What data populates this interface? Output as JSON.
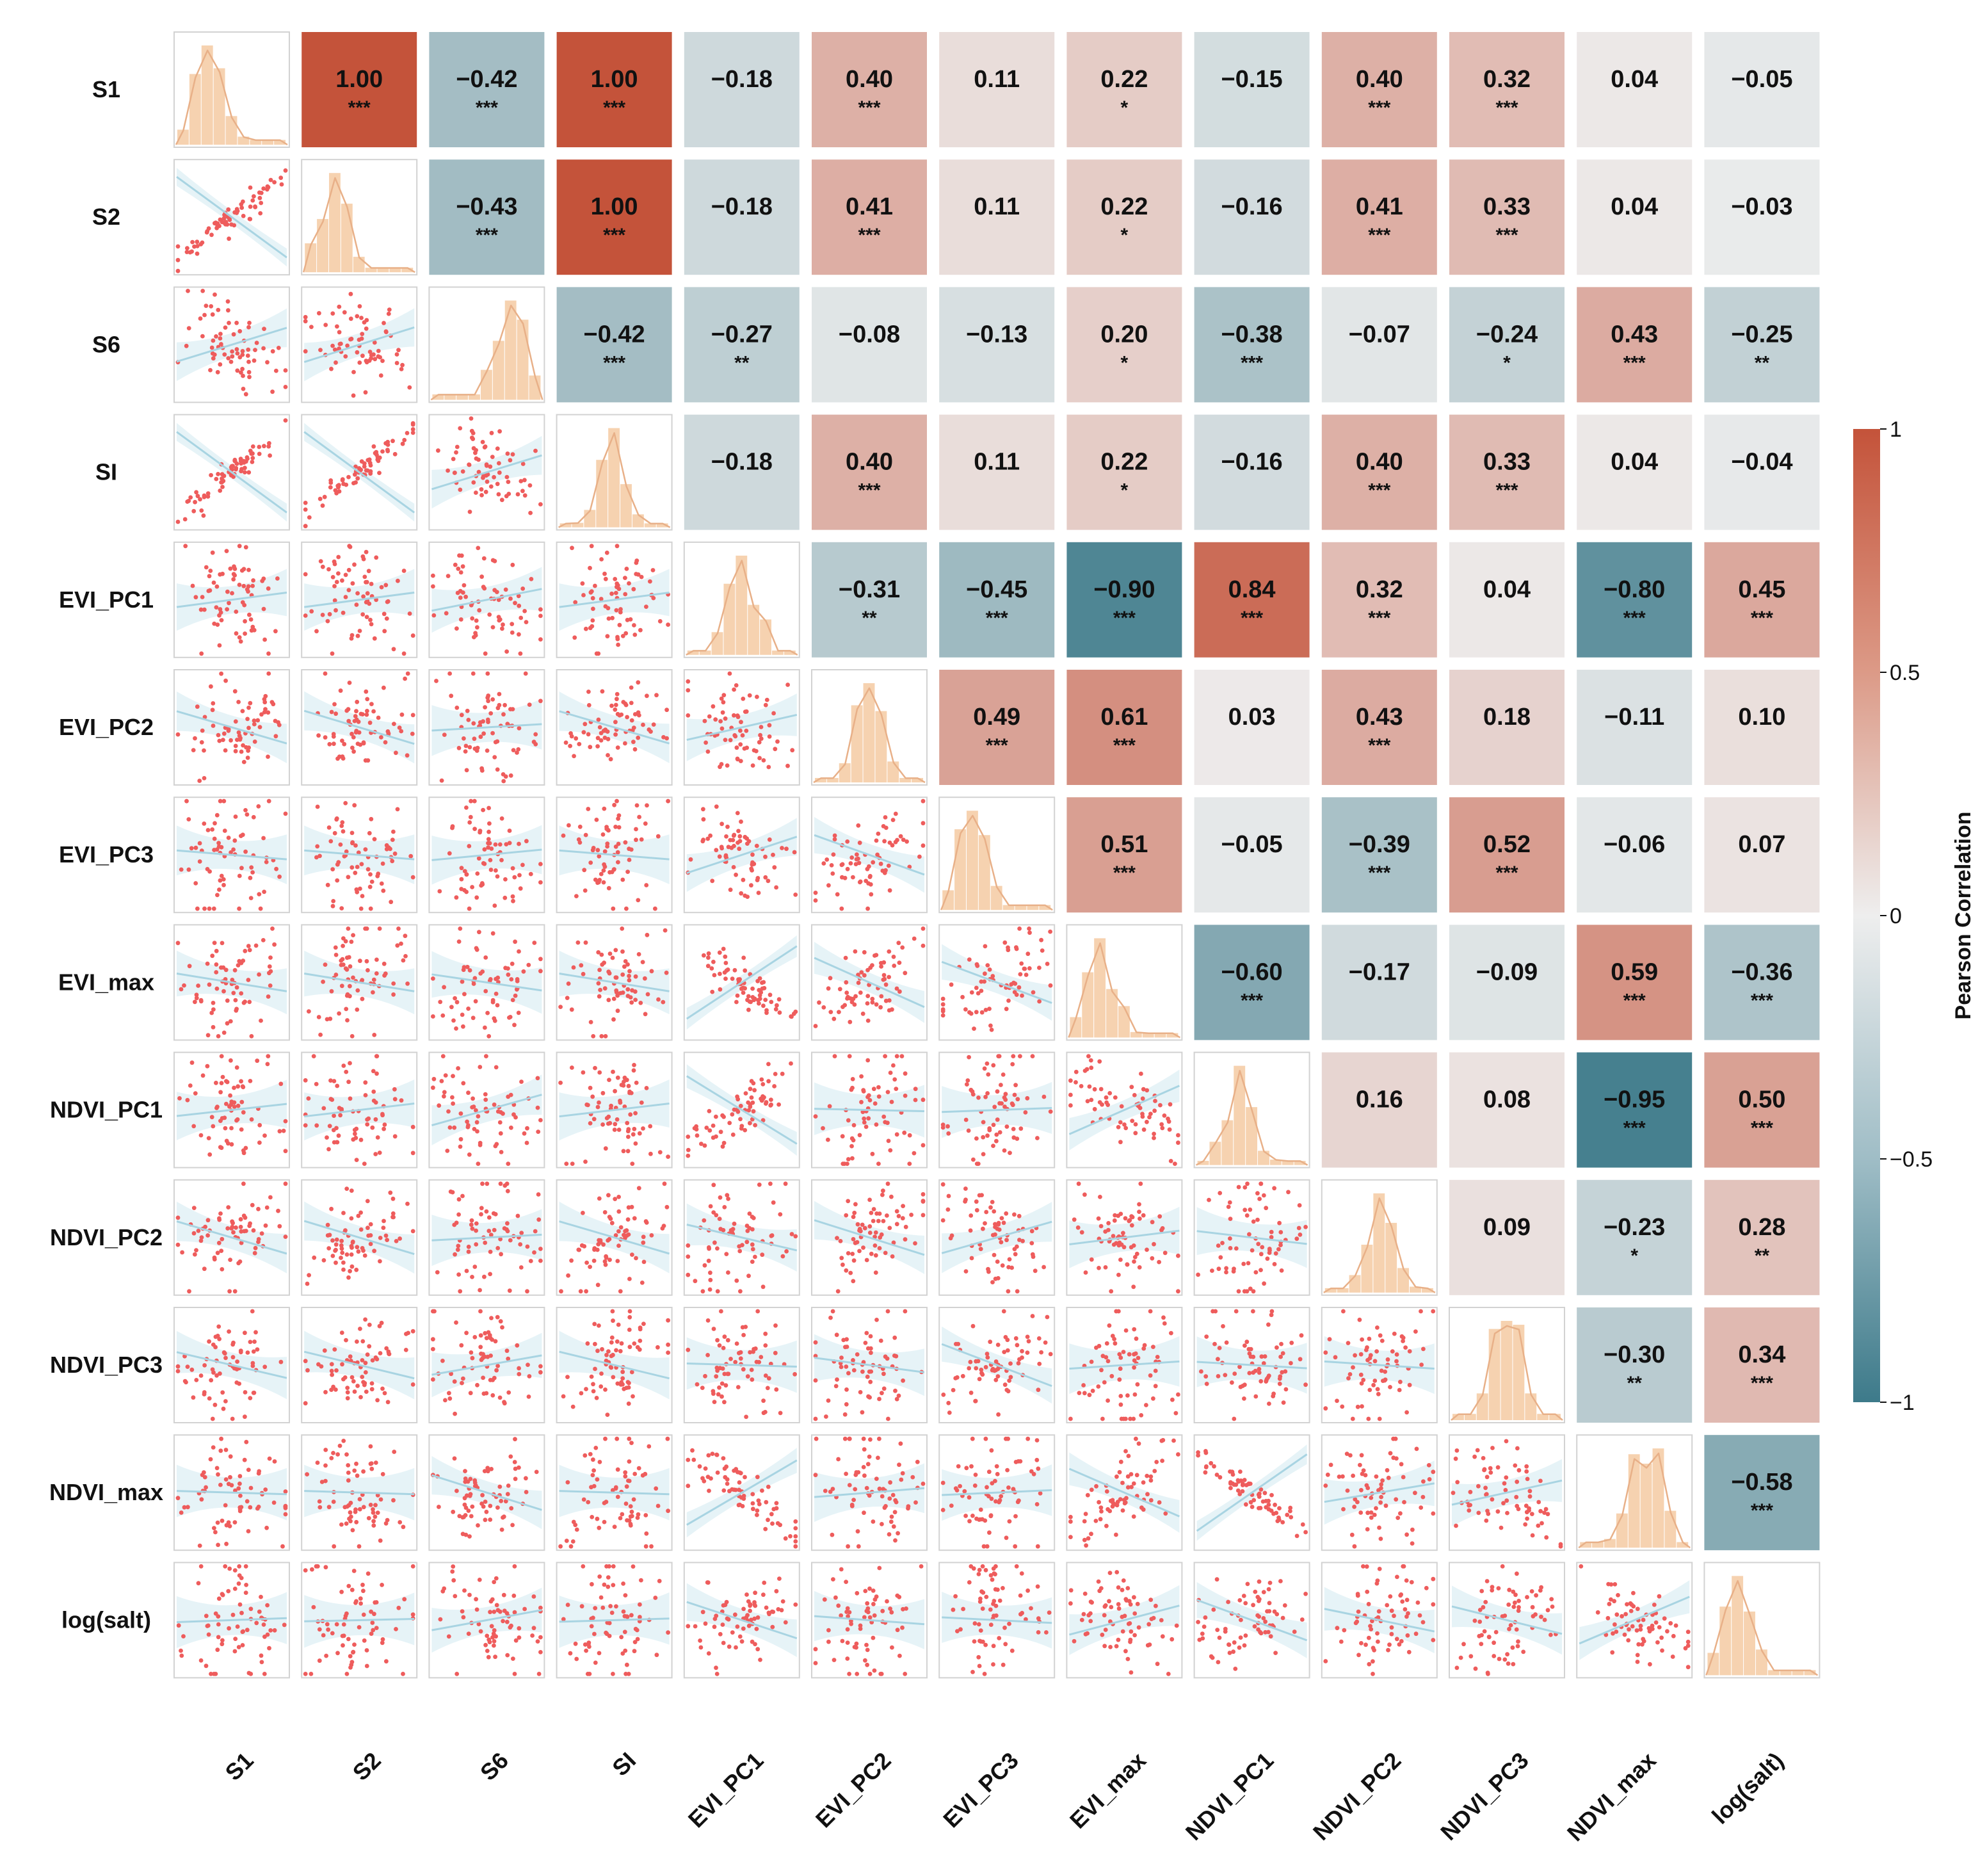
{
  "chart_data": {
    "type": "heatmap",
    "subtype": "pair-plot correlation matrix",
    "variables": [
      "S1",
      "S2",
      "S6",
      "SI",
      "EVI_PC1",
      "EVI_PC2",
      "EVI_PC3",
      "EVI_max",
      "NDVI_PC1",
      "NDVI_PC2",
      "NDVI_PC3",
      "NDVI_max",
      "log(salt)"
    ],
    "upper_triangle": [
      [
        null,
        "1.00",
        "−0.42",
        "1.00",
        "−0.18",
        "0.40",
        "0.11",
        "0.22",
        "−0.15",
        "0.40",
        "0.32",
        "0.04",
        "−0.05"
      ],
      [
        null,
        null,
        "−0.43",
        "1.00",
        "−0.18",
        "0.41",
        "0.11",
        "0.22",
        "−0.16",
        "0.41",
        "0.33",
        "0.04",
        "−0.03"
      ],
      [
        null,
        null,
        null,
        "−0.42",
        "−0.27",
        "−0.08",
        "−0.13",
        "0.20",
        "−0.38",
        "−0.07",
        "−0.24",
        "0.43",
        "−0.25"
      ],
      [
        null,
        null,
        null,
        null,
        "−0.18",
        "0.40",
        "0.11",
        "0.22",
        "−0.16",
        "0.40",
        "0.33",
        "0.04",
        "−0.04"
      ],
      [
        null,
        null,
        null,
        null,
        null,
        "−0.31",
        "−0.45",
        "−0.90",
        "0.84",
        "0.32",
        "0.04",
        "−0.80",
        "0.45"
      ],
      [
        null,
        null,
        null,
        null,
        null,
        null,
        "0.49",
        "0.61",
        "0.03",
        "0.43",
        "0.18",
        "−0.11",
        "0.10"
      ],
      [
        null,
        null,
        null,
        null,
        null,
        null,
        null,
        "0.51",
        "−0.05",
        "−0.39",
        "0.52",
        "−0.06",
        "0.07"
      ],
      [
        null,
        null,
        null,
        null,
        null,
        null,
        null,
        null,
        "−0.60",
        "−0.17",
        "−0.09",
        "0.59",
        "−0.36"
      ],
      [
        null,
        null,
        null,
        null,
        null,
        null,
        null,
        null,
        null,
        "0.16",
        "0.08",
        "−0.95",
        "0.50"
      ],
      [
        null,
        null,
        null,
        null,
        null,
        null,
        null,
        null,
        null,
        null,
        "0.09",
        "−0.23",
        "0.28"
      ],
      [
        null,
        null,
        null,
        null,
        null,
        null,
        null,
        null,
        null,
        null,
        null,
        "−0.30",
        "0.34"
      ],
      [
        null,
        null,
        null,
        null,
        null,
        null,
        null,
        null,
        null,
        null,
        null,
        null,
        "−0.58"
      ],
      [
        null,
        null,
        null,
        null,
        null,
        null,
        null,
        null,
        null,
        null,
        null,
        null,
        null
      ]
    ],
    "significance": [
      [
        null,
        "***",
        "***",
        "***",
        "",
        "***",
        "",
        "*",
        "",
        "***",
        "***",
        "",
        ""
      ],
      [
        null,
        null,
        "***",
        "***",
        "",
        "***",
        "",
        "*",
        "",
        "***",
        "***",
        "",
        ""
      ],
      [
        null,
        null,
        null,
        "***",
        "**",
        "",
        "",
        "*",
        "***",
        "",
        "*",
        "***",
        "**"
      ],
      [
        null,
        null,
        null,
        null,
        "",
        "***",
        "",
        "*",
        "",
        "***",
        "***",
        "",
        ""
      ],
      [
        null,
        null,
        null,
        null,
        null,
        "**",
        "***",
        "***",
        "***",
        "***",
        "",
        "***",
        "***"
      ],
      [
        null,
        null,
        null,
        null,
        null,
        null,
        "***",
        "***",
        "",
        "***",
        "",
        "",
        ""
      ],
      [
        null,
        null,
        null,
        null,
        null,
        null,
        null,
        "***",
        "",
        "***",
        "***",
        "",
        ""
      ],
      [
        null,
        null,
        null,
        null,
        null,
        null,
        null,
        null,
        "***",
        "",
        "",
        "***",
        "***"
      ],
      [
        null,
        null,
        null,
        null,
        null,
        null,
        null,
        null,
        null,
        "",
        "",
        "***",
        "***"
      ],
      [
        null,
        null,
        null,
        null,
        null,
        null,
        null,
        null,
        null,
        null,
        "",
        "*",
        "**"
      ],
      [
        null,
        null,
        null,
        null,
        null,
        null,
        null,
        null,
        null,
        null,
        null,
        "**",
        "***"
      ],
      [
        null,
        null,
        null,
        null,
        null,
        null,
        null,
        null,
        null,
        null,
        null,
        null,
        "***"
      ],
      [
        null,
        null,
        null,
        null,
        null,
        null,
        null,
        null,
        null,
        null,
        null,
        null,
        null
      ]
    ],
    "lower_triangle": "scatter plots with linear regression fit and confidence band",
    "diagonal": "histogram with KDE curve",
    "colorbar": {
      "label": "Pearson Correlation",
      "range": [
        -1,
        1
      ],
      "ticks": [
        "1",
        "0.5",
        "0",
        "−0.5",
        "−1"
      ]
    },
    "colors": {
      "positive": "#c4533a",
      "neutral": "#eeeeee",
      "negative": "#3d7a8a",
      "scatter_point": "#ee5c5c",
      "fit_line": "#a8d4e2",
      "confidence_band": "#e6f3f7",
      "histogram": "#f6d2b0",
      "kde": "#e8b088",
      "panel_border": "#d2d2d2"
    }
  }
}
